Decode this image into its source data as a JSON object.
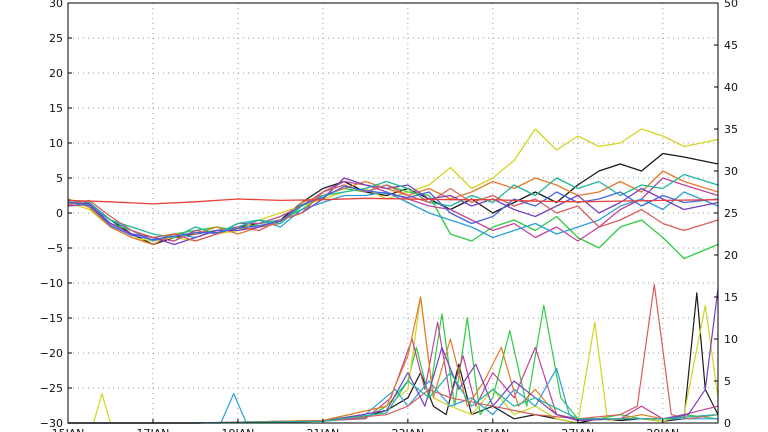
{
  "chart_data": {
    "type": "line",
    "title": "",
    "xlabel": "",
    "ylabel": "",
    "grid": true,
    "x_ticks": [
      "15JAN",
      "17JAN",
      "19JAN",
      "21JAN",
      "23JAN",
      "25JAN",
      "27JAN",
      "29JAN"
    ],
    "x_range_days": [
      15,
      30.3
    ],
    "y_left": {
      "range": [
        -30,
        30
      ],
      "ticks": [
        -30,
        -25,
        -20,
        -15,
        -10,
        -5,
        0,
        5,
        10,
        15,
        20,
        25,
        30
      ]
    },
    "y_right": {
      "range": [
        0,
        50
      ],
      "ticks": [
        0,
        5,
        10,
        15,
        20,
        25,
        30,
        35,
        40,
        45,
        50
      ]
    },
    "colors": {
      "mean_line": "#e8403a",
      "members": [
        "#1a1a1a",
        "#2ecc40",
        "#d4d422",
        "#c0449a",
        "#2b9fd9",
        "#e37b2b",
        "#7a3fbf",
        "#1fb89a",
        "#d95d5d",
        "#4466dd"
      ]
    },
    "temperature_series": [
      {
        "color": "#e8403a",
        "width": 2,
        "day": [
          15,
          16,
          17,
          18,
          19,
          20,
          21,
          22,
          23,
          24,
          25,
          26,
          27,
          28,
          29,
          30.3
        ],
        "value": [
          1.8,
          1.6,
          1.3,
          1.6,
          2.0,
          1.8,
          1.9,
          2.1,
          2.0,
          1.9,
          1.9,
          1.7,
          1.6,
          1.7,
          1.8,
          1.9
        ]
      },
      {
        "color": "#1a1a1a",
        "day": [
          15,
          15.5,
          16,
          16.5,
          17,
          17.5,
          18,
          18.5,
          19,
          19.5,
          20,
          20.5,
          21,
          21.5,
          22,
          22.5,
          23,
          23.5,
          24,
          24.5,
          25,
          25.5,
          26,
          26.5,
          27,
          27.5,
          28,
          28.5,
          29,
          29.5,
          30.3
        ],
        "value": [
          1.0,
          1.5,
          -1.0,
          -3.0,
          -4.5,
          -3.5,
          -3.0,
          -2.5,
          -2.0,
          -1.5,
          -1.0,
          1.5,
          3.5,
          4.5,
          3.0,
          2.5,
          3.5,
          2.0,
          0.5,
          2.0,
          0.0,
          1.5,
          3.0,
          1.5,
          4.0,
          6.0,
          7.0,
          6.0,
          8.5,
          8.0,
          7.0
        ]
      },
      {
        "color": "#2ecc40",
        "day": [
          15,
          15.5,
          16,
          16.5,
          17,
          17.5,
          18,
          18.5,
          19,
          19.5,
          20,
          20.5,
          21,
          21.5,
          22,
          22.5,
          23,
          23.5,
          24,
          24.5,
          25,
          25.5,
          26,
          26.5,
          27,
          27.5,
          28,
          28.5,
          29,
          29.5,
          30.3
        ],
        "value": [
          2.0,
          1.0,
          -1.5,
          -2.5,
          -3.5,
          -3.0,
          -2.5,
          -2.0,
          -2.5,
          -1.5,
          -1.0,
          0.5,
          2.5,
          3.5,
          3.0,
          4.0,
          3.0,
          2.5,
          -3.0,
          -4.0,
          -2.0,
          -1.0,
          -2.5,
          -0.5,
          -3.5,
          -5.0,
          -2.0,
          -1.0,
          -3.5,
          -6.5,
          -4.5
        ]
      },
      {
        "color": "#d4d422",
        "day": [
          15,
          15.5,
          16,
          16.5,
          17,
          17.5,
          18,
          18.5,
          19,
          19.5,
          20,
          20.5,
          21,
          21.5,
          22,
          22.5,
          23,
          23.5,
          24,
          24.5,
          25,
          25.5,
          26,
          26.5,
          27,
          27.5,
          28,
          28.5,
          29,
          29.5,
          30.3
        ],
        "value": [
          1.5,
          0.5,
          -2.0,
          -3.5,
          -4.0,
          -3.5,
          -4.0,
          -3.0,
          -2.5,
          -1.0,
          0.0,
          1.0,
          2.0,
          3.0,
          3.5,
          2.0,
          3.0,
          4.0,
          6.5,
          3.5,
          5.0,
          7.5,
          12.0,
          9.0,
          11.0,
          9.5,
          10.0,
          12.0,
          11.0,
          9.5,
          10.5
        ]
      },
      {
        "color": "#c0449a",
        "day": [
          15,
          15.5,
          16,
          16.5,
          17,
          17.5,
          18,
          18.5,
          19,
          19.5,
          20,
          20.5,
          21,
          21.5,
          22,
          22.5,
          23,
          23.5,
          24,
          24.5,
          25,
          25.5,
          26,
          26.5,
          27,
          27.5,
          28,
          28.5,
          29,
          29.5,
          30.3
        ],
        "value": [
          1.0,
          1.2,
          -1.5,
          -3.0,
          -3.5,
          -4.0,
          -2.5,
          -3.0,
          -1.5,
          -1.5,
          -0.5,
          1.0,
          3.0,
          4.5,
          4.0,
          3.0,
          2.0,
          1.0,
          0.5,
          -1.0,
          -2.5,
          -1.5,
          -3.5,
          -2.0,
          -4.0,
          -2.0,
          0.5,
          2.0,
          5.0,
          4.0,
          2.5
        ]
      },
      {
        "color": "#2b9fd9",
        "day": [
          15,
          15.5,
          16,
          16.5,
          17,
          17.5,
          18,
          18.5,
          19,
          19.5,
          20,
          20.5,
          21,
          21.5,
          22,
          22.5,
          23,
          23.5,
          24,
          24.5,
          25,
          25.5,
          26,
          26.5,
          27,
          27.5,
          28,
          28.5,
          29,
          29.5,
          30.3
        ],
        "value": [
          1.5,
          1.0,
          -1.0,
          -2.5,
          -4.0,
          -3.0,
          -3.5,
          -2.5,
          -2.0,
          -1.0,
          -2.0,
          0.5,
          1.5,
          2.5,
          2.5,
          3.0,
          1.5,
          0.0,
          -1.0,
          -2.0,
          -3.5,
          -2.5,
          -1.5,
          -3.0,
          -2.0,
          -1.0,
          1.0,
          2.0,
          0.5,
          3.0,
          1.0
        ]
      },
      {
        "color": "#e37b2b",
        "day": [
          15,
          15.5,
          16,
          16.5,
          17,
          17.5,
          18,
          18.5,
          19,
          19.5,
          20,
          20.5,
          21,
          21.5,
          22,
          22.5,
          23,
          23.5,
          24,
          24.5,
          25,
          25.5,
          26,
          26.5,
          27,
          27.5,
          28,
          28.5,
          29,
          29.5,
          30.3
        ],
        "value": [
          2.0,
          0.8,
          -2.0,
          -3.5,
          -4.5,
          -3.0,
          -3.0,
          -2.0,
          -3.0,
          -2.0,
          -1.5,
          1.5,
          2.5,
          3.5,
          4.5,
          3.5,
          2.5,
          3.5,
          2.0,
          3.0,
          4.5,
          3.5,
          5.0,
          4.0,
          2.5,
          3.0,
          4.5,
          3.0,
          6.0,
          4.5,
          3.0
        ]
      },
      {
        "color": "#7a3fbf",
        "day": [
          15,
          15.5,
          16,
          16.5,
          17,
          17.5,
          18,
          18.5,
          19,
          19.5,
          20,
          20.5,
          21,
          21.5,
          22,
          22.5,
          23,
          23.5,
          24,
          24.5,
          25,
          25.5,
          26,
          26.5,
          27,
          27.5,
          28,
          28.5,
          29,
          29.5,
          30.3
        ],
        "value": [
          1.5,
          1.3,
          -1.5,
          -3.0,
          -3.5,
          -4.5,
          -3.5,
          -2.5,
          -2.5,
          -2.0,
          -1.0,
          0.0,
          2.0,
          5.0,
          4.0,
          3.5,
          4.0,
          2.0,
          2.5,
          1.0,
          2.0,
          0.5,
          -0.5,
          1.0,
          2.5,
          0.0,
          1.5,
          3.5,
          2.0,
          0.5,
          1.5
        ]
      },
      {
        "color": "#1fb89a",
        "day": [
          15,
          15.5,
          16,
          16.5,
          17,
          17.5,
          18,
          18.5,
          19,
          19.5,
          20,
          20.5,
          21,
          21.5,
          22,
          22.5,
          23,
          23.5,
          24,
          24.5,
          25,
          25.5,
          26,
          26.5,
          27,
          27.5,
          28,
          28.5,
          29,
          29.5,
          30.3
        ],
        "value": [
          1.8,
          1.5,
          -1.0,
          -2.0,
          -3.0,
          -3.5,
          -2.0,
          -3.0,
          -1.5,
          -1.0,
          -1.5,
          1.0,
          2.5,
          3.0,
          3.5,
          4.5,
          3.5,
          1.5,
          1.0,
          2.5,
          1.5,
          4.0,
          2.5,
          5.0,
          3.5,
          4.5,
          2.5,
          4.0,
          3.5,
          5.5,
          4.0
        ]
      },
      {
        "color": "#d95d5d",
        "day": [
          15,
          15.5,
          16,
          16.5,
          17,
          17.5,
          18,
          18.5,
          19,
          19.5,
          20,
          20.5,
          21,
          21.5,
          22,
          22.5,
          23,
          23.5,
          24,
          24.5,
          25,
          25.5,
          26,
          26.5,
          27,
          27.5,
          28,
          28.5,
          29,
          29.5,
          30.3
        ],
        "value": [
          1.2,
          1.8,
          -0.5,
          -2.5,
          -3.5,
          -3.0,
          -4.0,
          -3.0,
          -2.0,
          -2.5,
          -1.0,
          0.0,
          3.0,
          4.0,
          3.0,
          4.0,
          2.5,
          1.5,
          3.5,
          1.5,
          2.5,
          1.0,
          2.0,
          0.0,
          1.0,
          -2.0,
          -1.0,
          0.5,
          -1.5,
          -2.5,
          -1.0
        ]
      },
      {
        "color": "#4466dd",
        "day": [
          15,
          15.5,
          16,
          16.5,
          17,
          17.5,
          18,
          18.5,
          19,
          19.5,
          20,
          20.5,
          21,
          21.5,
          22,
          22.5,
          23,
          23.5,
          24,
          24.5,
          25,
          25.5,
          26,
          26.5,
          27,
          27.5,
          28,
          28.5,
          29,
          29.5,
          30.3
        ],
        "value": [
          1.6,
          1.1,
          -1.8,
          -3.2,
          -3.8,
          -3.3,
          -2.8,
          -2.8,
          -2.2,
          -1.8,
          -1.2,
          1.2,
          2.2,
          3.8,
          3.2,
          2.8,
          2.2,
          3.0,
          0.0,
          -1.5,
          -0.5,
          2.0,
          1.0,
          3.0,
          1.5,
          2.0,
          3.0,
          1.0,
          2.5,
          1.5,
          2.0
        ]
      }
    ],
    "precip_series": [
      {
        "color": "#1a1a1a",
        "day": [
          15,
          18,
          21,
          22,
          22.5,
          23,
          23.3,
          23.6,
          23.9,
          24.2,
          24.5,
          25,
          25.5,
          26,
          26.5,
          27,
          27.5,
          28,
          28.5,
          29,
          29.5,
          29.8,
          30.0,
          30.3
        ],
        "value": [
          0,
          0,
          0.3,
          0.8,
          1.5,
          3,
          6,
          2,
          1,
          7,
          1,
          2,
          0.5,
          1,
          0.5,
          0,
          0.5,
          0.3,
          0.5,
          0.2,
          0.5,
          15.5,
          4,
          1
        ]
      },
      {
        "color": "#2ecc40",
        "day": [
          15,
          18,
          21,
          22,
          22.5,
          23,
          23.2,
          23.5,
          23.8,
          24.1,
          24.4,
          24.7,
          25,
          25.4,
          25.8,
          26.2,
          26.6,
          27,
          27.5,
          28,
          28.5,
          29,
          29.5,
          30.3
        ],
        "value": [
          0,
          0,
          0.2,
          0.6,
          2,
          5,
          9,
          3,
          13,
          2,
          12.5,
          1,
          3,
          11,
          2,
          14,
          3,
          0.5,
          0.5,
          1,
          0.5,
          0.5,
          1,
          0.5
        ]
      },
      {
        "color": "#d4d422",
        "day": [
          15,
          15.6,
          15.8,
          16,
          18,
          21,
          22.5,
          23,
          23.3,
          23.6,
          24,
          24.5,
          25,
          25.5,
          26,
          26.5,
          27,
          27.4,
          27.7,
          28,
          28.5,
          29,
          29.5,
          30.0,
          30.3
        ],
        "value": [
          0,
          0,
          3.5,
          0,
          0,
          0.3,
          2,
          4,
          15,
          3,
          2,
          1,
          4,
          1,
          2,
          0.5,
          0,
          12,
          0.3,
          0.5,
          0.5,
          0.2,
          1,
          14,
          3
        ]
      },
      {
        "color": "#c0449a",
        "day": [
          15,
          18,
          21,
          22,
          22.6,
          23.1,
          23.4,
          23.7,
          24,
          24.3,
          24.6,
          25,
          25.5,
          26,
          26.5,
          27,
          28,
          28.5,
          29,
          29.5,
          30.3
        ],
        "value": [
          0,
          0,
          0.3,
          0.5,
          3,
          10,
          4,
          12,
          3,
          8,
          2,
          6,
          3,
          9,
          1,
          0.5,
          0.5,
          2,
          0.5,
          1,
          2
        ]
      },
      {
        "color": "#2b9fd9",
        "day": [
          15,
          18,
          18.6,
          18.9,
          19.2,
          21,
          22,
          22.7,
          23,
          23.5,
          24,
          24.5,
          25,
          25.5,
          26,
          26.5,
          26.8,
          27,
          28,
          29,
          30.3
        ],
        "value": [
          0,
          0,
          0,
          3.5,
          0,
          0.3,
          1,
          4,
          2,
          5,
          2,
          3,
          1,
          4,
          2,
          6.5,
          1,
          0.3,
          0.5,
          0.5,
          0.5
        ]
      },
      {
        "color": "#e37b2b",
        "day": [
          15,
          18,
          21,
          22.5,
          23,
          23.3,
          23.6,
          24,
          24.4,
          24.8,
          25.2,
          25.6,
          26,
          26.5,
          27,
          28,
          28.5,
          29,
          30.3
        ],
        "value": [
          0,
          0,
          0.3,
          2,
          8,
          15,
          3,
          10,
          2,
          5,
          9,
          2,
          4,
          1,
          0.3,
          0.5,
          1,
          0.5,
          1
        ]
      },
      {
        "color": "#d95d5d",
        "day": [
          15,
          18,
          21,
          22.5,
          23,
          23.5,
          24,
          25,
          26,
          27,
          28,
          28.4,
          28.8,
          29.2,
          29.6,
          30.3
        ],
        "value": [
          0,
          0,
          0.2,
          1,
          2,
          4,
          3,
          2,
          1,
          0.5,
          1,
          2,
          16.5,
          1,
          0.5,
          1
        ]
      },
      {
        "color": "#7a3fbf",
        "day": [
          15,
          18,
          21,
          22.5,
          23,
          23.4,
          23.8,
          24.2,
          24.6,
          25,
          25.5,
          26,
          26.5,
          27,
          28,
          29,
          29.6,
          30.0,
          30.3
        ],
        "value": [
          0,
          0,
          0.2,
          1.5,
          6,
          2,
          9,
          4,
          7,
          2,
          5,
          3,
          1,
          0.3,
          0.5,
          0.5,
          1,
          4,
          16
        ]
      },
      {
        "color": "#1fb89a",
        "day": [
          15,
          18,
          21,
          22.5,
          23,
          23.5,
          24,
          24.5,
          25,
          25.5,
          26,
          27,
          28,
          29,
          30.3
        ],
        "value": [
          0,
          0,
          0.2,
          1.2,
          5,
          3,
          6,
          2,
          4,
          2,
          3,
          0.5,
          0.5,
          0.5,
          1
        ]
      }
    ]
  }
}
